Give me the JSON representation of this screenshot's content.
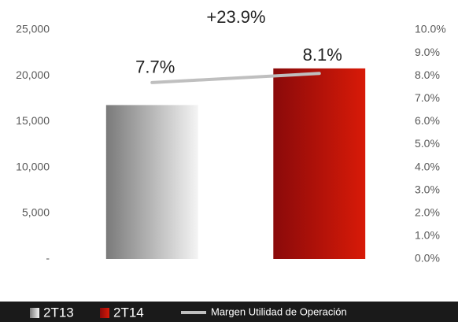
{
  "chart_data": {
    "type": "bar",
    "annotation": "+23.9%",
    "categories": [
      "2T13",
      "2T14"
    ],
    "values": [
      16800,
      20800
    ],
    "colors": [
      [
        "#7a7a7a",
        "#f4f4f4"
      ],
      [
        "#8a0a0a",
        "#d81a08"
      ]
    ],
    "ylim": [
      0,
      25000
    ],
    "yticks": [
      {
        "value": 0,
        "label": "-"
      },
      {
        "value": 5000,
        "label": "5,000"
      },
      {
        "value": 10000,
        "label": "10,000"
      },
      {
        "value": 15000,
        "label": "15,000"
      },
      {
        "value": 20000,
        "label": "20,000"
      },
      {
        "value": 25000,
        "label": "25,000"
      }
    ],
    "y2lim": [
      0,
      10
    ],
    "y2ticks": [
      {
        "value": 0,
        "label": "0.0%"
      },
      {
        "value": 1,
        "label": "1.0%"
      },
      {
        "value": 2,
        "label": "2.0%"
      },
      {
        "value": 3,
        "label": "3.0%"
      },
      {
        "value": 4,
        "label": "4.0%"
      },
      {
        "value": 5,
        "label": "5.0%"
      },
      {
        "value": 6,
        "label": "6.0%"
      },
      {
        "value": 7,
        "label": "7.0%"
      },
      {
        "value": 8,
        "label": "8.0%"
      },
      {
        "value": 9,
        "label": "9.0%"
      },
      {
        "value": 10,
        "label": "10.0%"
      }
    ],
    "series": [
      {
        "name": "Margen Utilidad de Operación",
        "type": "line",
        "axis": "y2",
        "color": "#bfbfbf",
        "values": [
          7.7,
          8.1
        ],
        "value_labels": [
          "7.7%",
          "8.1%"
        ]
      }
    ],
    "legend": "bottom"
  }
}
